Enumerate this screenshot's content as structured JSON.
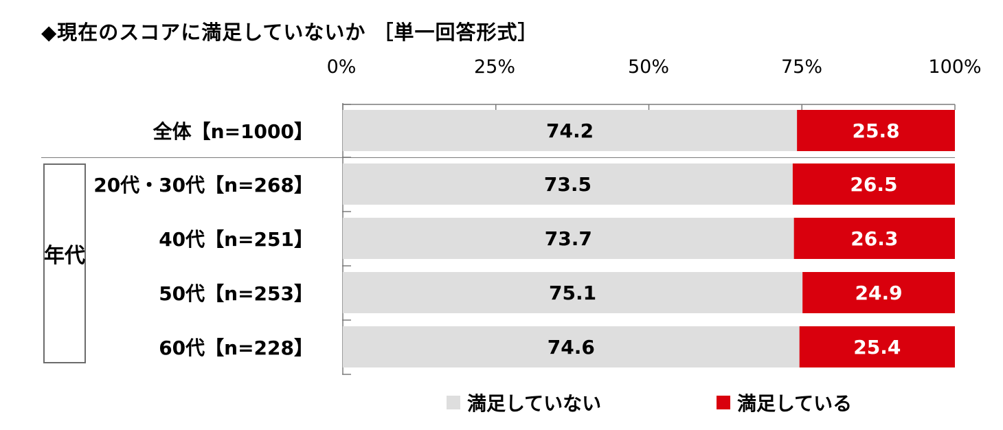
{
  "chart_data": {
    "type": "bar",
    "orientation": "horizontal-stacked-100",
    "title": "◆現在のスコアに満足していないか ［単一回答形式］",
    "x_ticks": [
      "0%",
      "25%",
      "50%",
      "75%",
      "100%"
    ],
    "xlim": [
      0,
      100
    ],
    "categories": [
      "全体【n=1000】",
      "20代・30代【n=268】",
      "40代【n=251】",
      "50代【n=253】",
      "60代【n=228】"
    ],
    "group_label": "年代",
    "series": [
      {
        "name": "満足していない",
        "color": "#dedede",
        "label_color": "#000000",
        "values": [
          74.2,
          73.5,
          73.7,
          75.1,
          74.6
        ]
      },
      {
        "name": "満足している",
        "color": "#d9000d",
        "label_color": "#ffffff",
        "values": [
          25.8,
          26.5,
          26.3,
          24.9,
          25.4
        ]
      }
    ],
    "legend_position": "bottom",
    "grid": false
  }
}
